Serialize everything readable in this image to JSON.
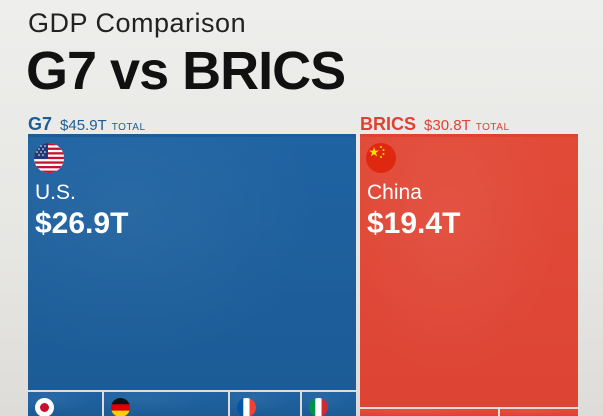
{
  "header": {
    "subtitle": "GDP Comparison",
    "title": "G7 vs BRICS"
  },
  "colors": {
    "g7": "#1d5d96",
    "brics": "#de4332"
  },
  "chart_data": {
    "type": "treemap",
    "groups": [
      {
        "name": "G7",
        "total_label": "$45.9T",
        "total_suffix": "TOTAL",
        "total": 45.9,
        "color": "#1d5d96",
        "countries": [
          {
            "name": "U.S.",
            "value_label": "$26.9T",
            "value": 26.9,
            "flag": "us-flag-icon"
          },
          {
            "name": "",
            "flag": "japan-flag-icon"
          },
          {
            "name": "",
            "flag": "germany-flag-icon"
          },
          {
            "name": "",
            "flag": "france-flag-icon"
          },
          {
            "name": "",
            "flag": "italy-flag-icon"
          }
        ]
      },
      {
        "name": "BRICS",
        "total_label": "$30.8T",
        "total_suffix": "TOTAL",
        "total": 30.8,
        "color": "#de4332",
        "countries": [
          {
            "name": "China",
            "value_label": "$19.4T",
            "value": 19.4,
            "flag": "china-flag-icon"
          }
        ]
      }
    ]
  }
}
